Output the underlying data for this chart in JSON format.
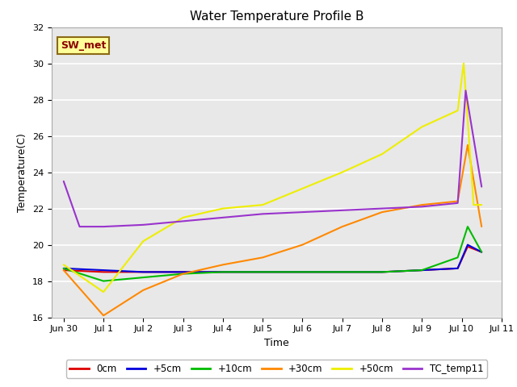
{
  "title": "Water Temperature Profile B",
  "xlabel": "Time",
  "ylabel": "Temperature(C)",
  "annotation_text": "SW_met",
  "annotation_bg": "#ffff99",
  "annotation_border": "#8B6914",
  "annotation_text_color": "#8B0000",
  "ylim": [
    16,
    32
  ],
  "yticks": [
    16,
    18,
    20,
    22,
    24,
    26,
    28,
    30,
    32
  ],
  "x_labels": [
    "Jun 30",
    "Jul 1",
    "Jul 2",
    "Jul 3",
    "Jul 4",
    "Jul 5",
    "Jul 6",
    "Jul 7",
    "Jul 8",
    "Jul 9",
    "Jul 10",
    "Jul 11"
  ],
  "series_order": [
    "0cm",
    "+5cm",
    "+10cm",
    "+30cm",
    "+50cm",
    "TC_temp11"
  ],
  "series": {
    "0cm": {
      "color": "#dd0000",
      "x": [
        0,
        1,
        2,
        3,
        4,
        5,
        6,
        7,
        8,
        9,
        9.9,
        10.15,
        10.5
      ],
      "y": [
        18.6,
        18.5,
        18.5,
        18.5,
        18.5,
        18.5,
        18.5,
        18.5,
        18.5,
        18.6,
        18.7,
        19.9,
        19.6
      ]
    },
    "+5cm": {
      "color": "#0000dd",
      "x": [
        0,
        1,
        2,
        3,
        4,
        5,
        6,
        7,
        8,
        9,
        9.9,
        10.15,
        10.5
      ],
      "y": [
        18.7,
        18.6,
        18.5,
        18.5,
        18.5,
        18.5,
        18.5,
        18.5,
        18.5,
        18.6,
        18.7,
        20.0,
        19.6
      ]
    },
    "+10cm": {
      "color": "#00bb00",
      "x": [
        0,
        1,
        2,
        3,
        4,
        5,
        6,
        7,
        8,
        9,
        9.9,
        10.15,
        10.5
      ],
      "y": [
        18.7,
        18.0,
        18.2,
        18.4,
        18.5,
        18.5,
        18.5,
        18.5,
        18.5,
        18.6,
        19.3,
        21.0,
        19.6
      ]
    },
    "+30cm": {
      "color": "#ff8800",
      "x": [
        0,
        1,
        2,
        3,
        4,
        5,
        6,
        7,
        8,
        9,
        9.9,
        10.15,
        10.5
      ],
      "y": [
        18.6,
        16.1,
        17.5,
        18.4,
        18.9,
        19.3,
        20.0,
        21.0,
        21.8,
        22.2,
        22.4,
        25.5,
        21.0
      ]
    },
    "+50cm": {
      "color": "#eeee00",
      "x": [
        0,
        1,
        2,
        3,
        4,
        5,
        6,
        7,
        8,
        9,
        9.9,
        10.05,
        10.3,
        10.5
      ],
      "y": [
        18.9,
        17.4,
        20.2,
        21.5,
        22.0,
        22.2,
        23.1,
        24.0,
        25.0,
        26.5,
        27.4,
        30.0,
        22.2,
        22.2
      ]
    },
    "TC_temp11": {
      "color": "#9933cc",
      "x": [
        0,
        0.4,
        1,
        2,
        3,
        4,
        5,
        6,
        7,
        8,
        9,
        9.9,
        10.1,
        10.5
      ],
      "y": [
        23.5,
        21.0,
        21.0,
        21.1,
        21.3,
        21.5,
        21.7,
        21.8,
        21.9,
        22.0,
        22.1,
        22.3,
        28.5,
        23.2
      ]
    }
  },
  "background_color": "#e8e8e8",
  "grid_color": "white",
  "legend_labels": [
    "0cm",
    "+5cm",
    "+10cm",
    "+30cm",
    "+50cm",
    "TC_temp11"
  ],
  "legend_colors": [
    "#dd0000",
    "#0000dd",
    "#00bb00",
    "#ff8800",
    "#eeee00",
    "#9933cc"
  ]
}
